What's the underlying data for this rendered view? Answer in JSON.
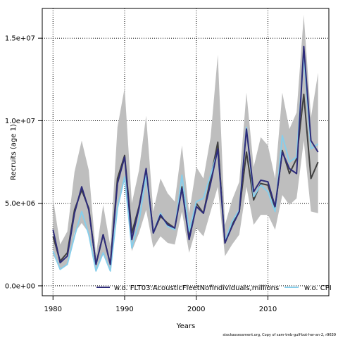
{
  "footer_text": "stockassessment.org, Copy of sam-tmb-gulf-bot-her-an-2, r9639",
  "chart_data": {
    "type": "line",
    "xlabel": "Years",
    "ylabel": "Recruits (age 1)",
    "xlim": [
      1978.5,
      2018.5
    ],
    "ylim": [
      -600000,
      16800000
    ],
    "xticks": [
      1980,
      1990,
      2000,
      2010
    ],
    "yticks": [
      0,
      5000000,
      10000000,
      15000000
    ],
    "ytick_labels": [
      "0.0e+00",
      "5.0e+06",
      "1.0e+07",
      "1.5e+07"
    ],
    "grid": true,
    "legend_position": "bottom",
    "x": [
      1980,
      1981,
      1982,
      1983,
      1984,
      1985,
      1986,
      1987,
      1988,
      1989,
      1990,
      1991,
      1992,
      1993,
      1994,
      1995,
      1996,
      1997,
      1998,
      1999,
      2000,
      2001,
      2002,
      2003,
      2004,
      2005,
      2006,
      2007,
      2008,
      2009,
      2010,
      2011,
      2012,
      2013,
      2014,
      2015,
      2016,
      2017
    ],
    "band": {
      "color": "#bebebe",
      "lower": [
        1900000,
        1000000,
        1300000,
        3200000,
        3800000,
        3200000,
        900000,
        2000000,
        900000,
        4800000,
        6400000,
        2100000,
        3200000,
        4600000,
        2300000,
        3000000,
        2600000,
        2500000,
        4500000,
        2000000,
        3500000,
        3000000,
        4500000,
        6000000,
        1800000,
        2500000,
        3100000,
        6000000,
        3700000,
        4300000,
        4300000,
        3400000,
        5500000,
        4900000,
        5300000,
        8800000,
        4500000,
        4400000
      ],
      "upper": [
        5300000,
        2500000,
        3300000,
        6900000,
        8800000,
        7000000,
        1900000,
        4900000,
        2400000,
        9600000,
        12000000,
        5000000,
        7000000,
        10300000,
        4500000,
        6500000,
        5600000,
        5100000,
        8500000,
        4400000,
        7200000,
        6500000,
        9000000,
        14000000,
        3700000,
        5200000,
        6300000,
        11700000,
        7200000,
        9000000,
        8500000,
        6500000,
        11700000,
        9500000,
        10500000,
        16400000,
        10200000,
        12900000
      ]
    },
    "series": [
      {
        "key": "base",
        "color": "#404040",
        "width": 2,
        "values": [
          3000000,
          1500000,
          2000000,
          4600000,
          5800000,
          4700000,
          1300000,
          3100000,
          1300000,
          6500000,
          7900000,
          3200000,
          4800000,
          7000000,
          3200000,
          4200000,
          3800000,
          3500000,
          6000000,
          2900000,
          5000000,
          4400000,
          6500000,
          8700000,
          2600000,
          3700000,
          4500000,
          8100000,
          5200000,
          6200000,
          6100000,
          4700000,
          8200000,
          6800000,
          7700000,
          11600000,
          6500000,
          7500000
        ]
      },
      {
        "key": "cpi",
        "name": "w.o. CPI",
        "color": "#87ceeb",
        "width": 2,
        "values": [
          2100000,
          1000000,
          1300000,
          3000000,
          4500000,
          3100000,
          900000,
          2000000,
          900000,
          4700000,
          6600000,
          2300000,
          3900000,
          6700000,
          3200000,
          4400000,
          3600000,
          3400000,
          6700000,
          3300000,
          5100000,
          5300000,
          6700000,
          8200000,
          2700000,
          3900000,
          4600000,
          9600000,
          5400000,
          6100000,
          5700000,
          4500000,
          9100000,
          7500000,
          7800000,
          14000000,
          8300000,
          8600000
        ]
      },
      {
        "key": "acoustic",
        "name": "w.o. FLT03:AcousticFleetNofindividuals,millions",
        "color": "#2e2c7a",
        "width": 2,
        "values": [
          3400000,
          1400000,
          1800000,
          4400000,
          6000000,
          4600000,
          1300000,
          3100000,
          1300000,
          6200000,
          7800000,
          2800000,
          4700000,
          7100000,
          3200000,
          4300000,
          3700000,
          3500000,
          5900000,
          2800000,
          4800000,
          4400000,
          6200000,
          8300000,
          2600000,
          3600000,
          4500000,
          9500000,
          5700000,
          6400000,
          6300000,
          4800000,
          8100000,
          7100000,
          6800000,
          14500000,
          8800000,
          8100000
        ]
      }
    ],
    "legend": [
      "w.o. FLT03:AcousticFleetNofindividuals,millions",
      "w.o. CPI"
    ]
  }
}
